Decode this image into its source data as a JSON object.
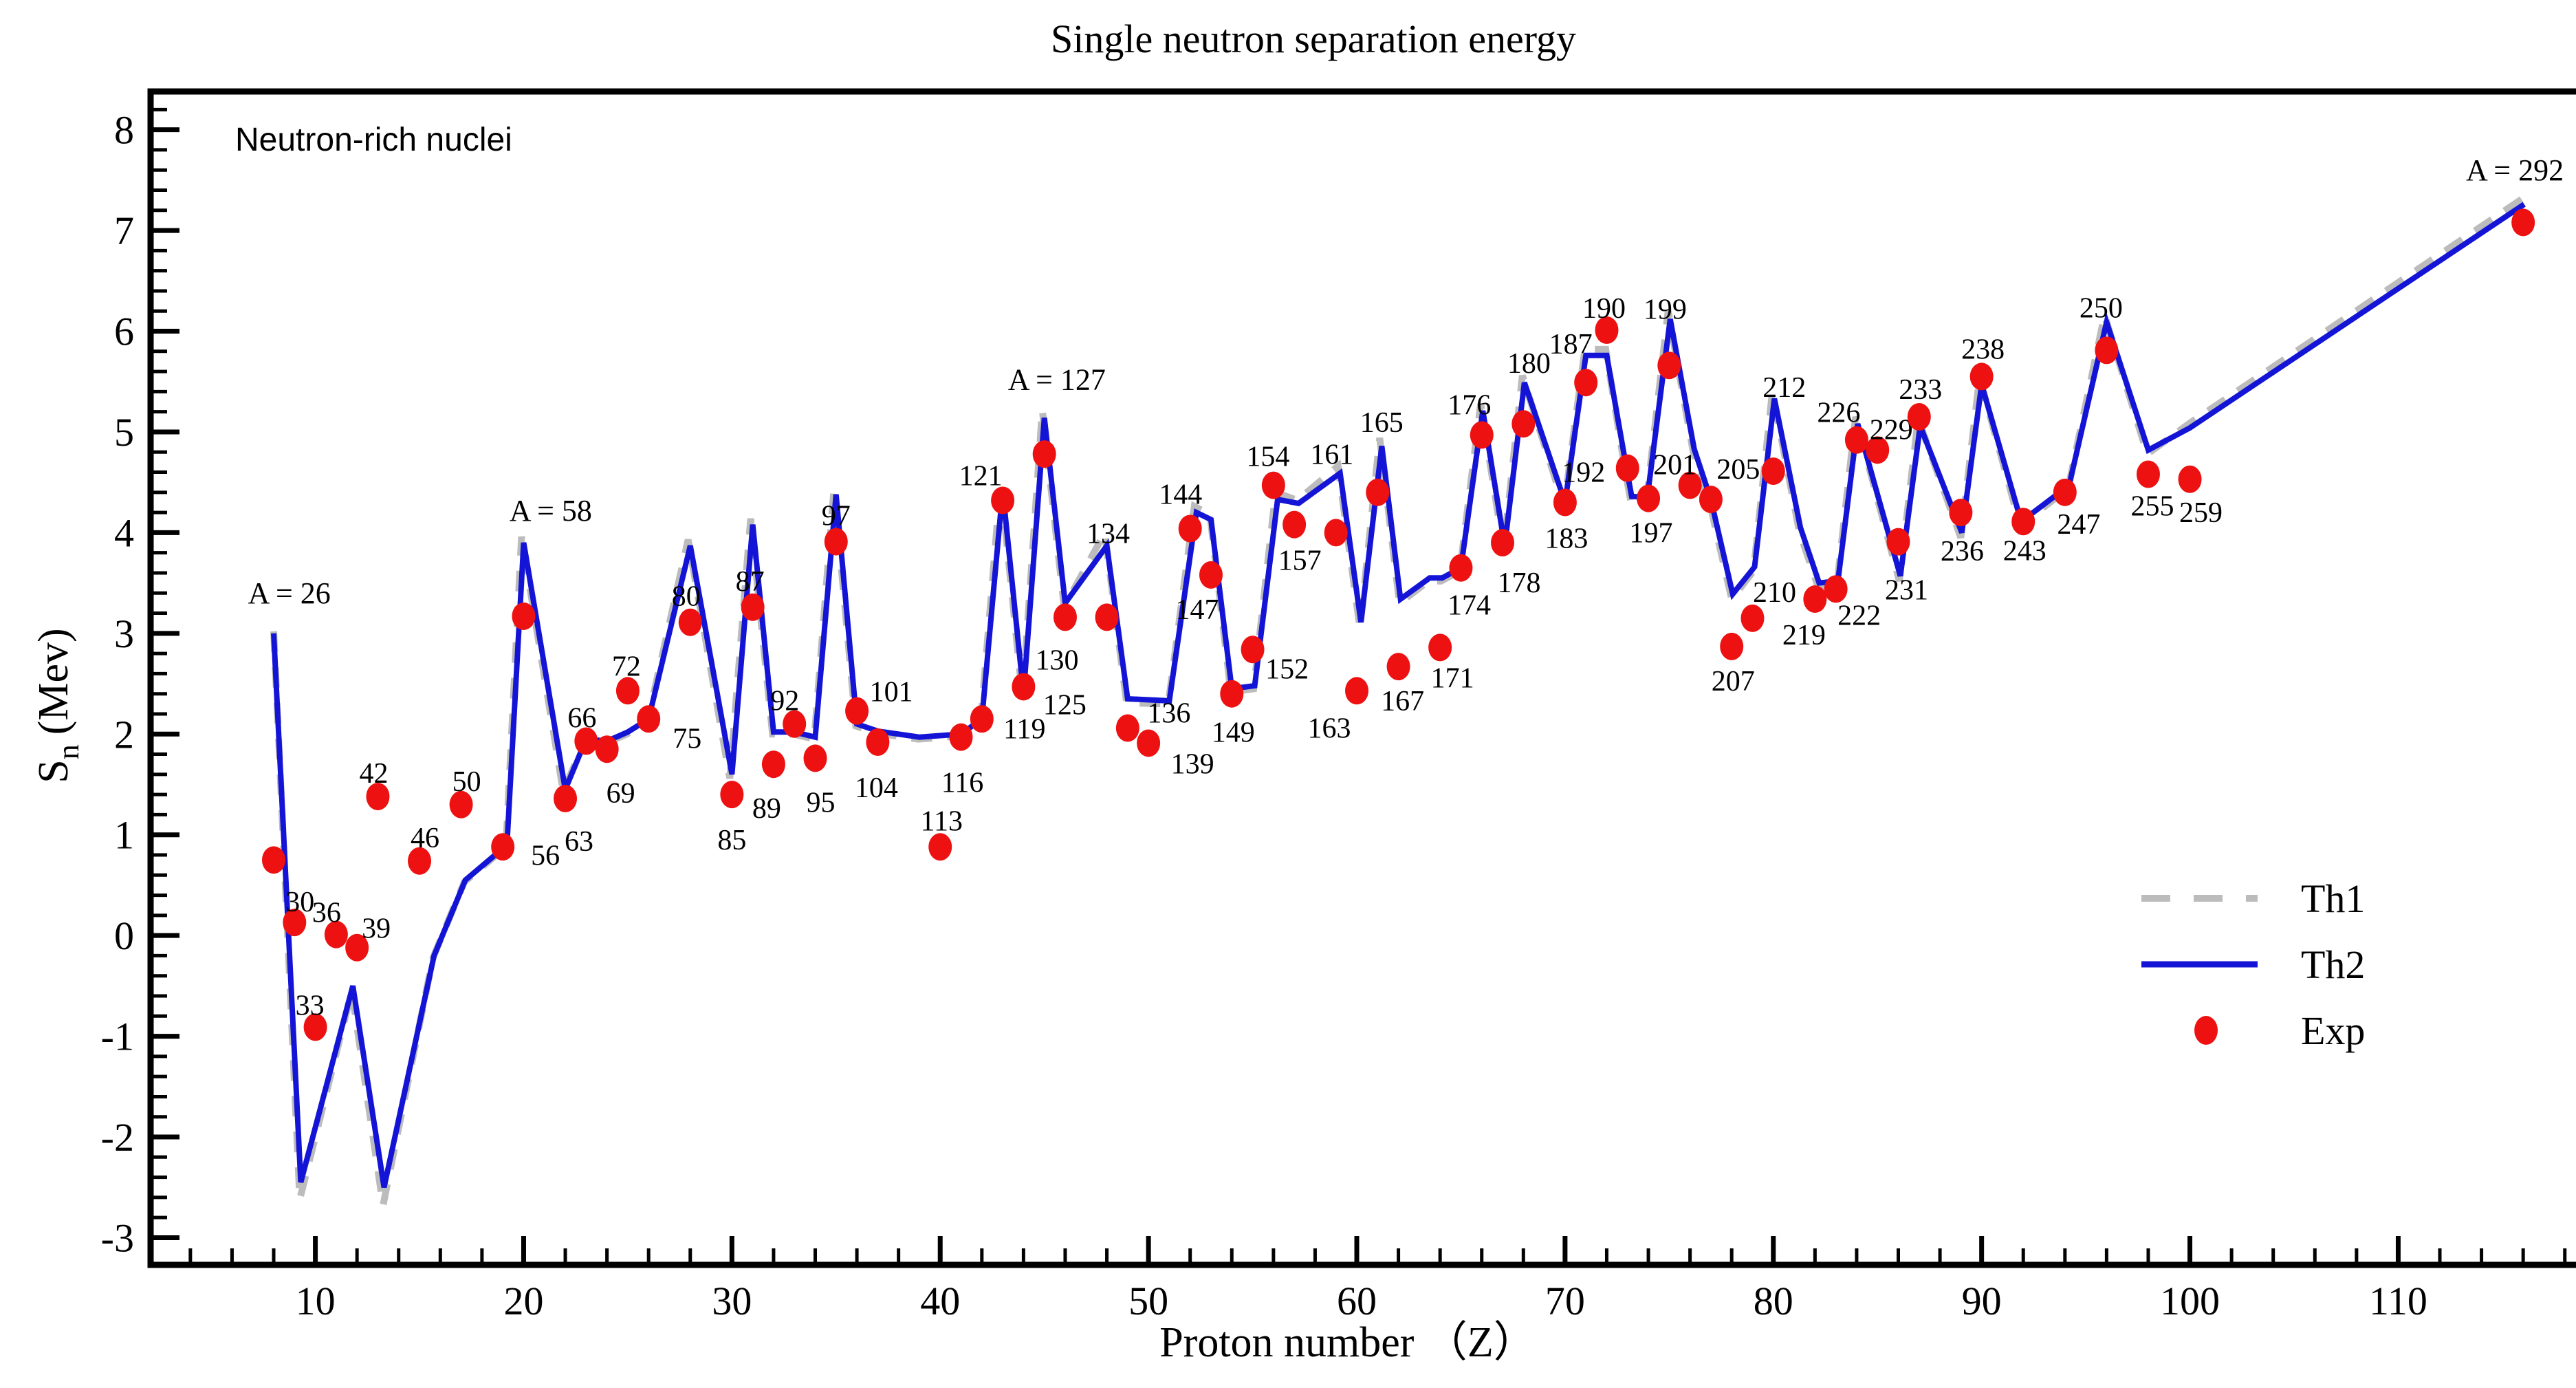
{
  "chart_data": {
    "type": "line",
    "title": "Single neutron separation energy",
    "xlabel": "Proton number （Z）",
    "ylabel": {
      "symbol": "S",
      "subscript": "n",
      "unit": "(Mev)"
    },
    "annotation": "Neutron-rich nuclei",
    "legend": {
      "position": "inside-right-middle",
      "entries": [
        {
          "label": "Th1",
          "style": "dashed-gray-line"
        },
        {
          "label": "Th2",
          "style": "solid-blue-line"
        },
        {
          "label": "Exp",
          "style": "red-dot"
        }
      ]
    },
    "axes": {
      "xlim": [
        2.09,
        118.9
      ],
      "ylim": [
        -3.27,
        8.38
      ],
      "x_major_ticks": [
        10,
        20,
        30,
        40,
        50,
        60,
        70,
        80,
        90,
        100,
        110
      ],
      "x_minor_step": 2,
      "y_major_ticks": [
        -3,
        -2,
        -1,
        0,
        1,
        2,
        3,
        4,
        5,
        6,
        7,
        8
      ],
      "y_minor_step": 0.2,
      "grid": false
    },
    "colors": {
      "th1": "#bcbcbc",
      "th2": "#1414d6",
      "exp": "#ee1111",
      "frame": "#000000"
    },
    "series": {
      "th1_name": "Th1",
      "th2_name": "Th2",
      "exp_name": "Exp",
      "th1": [
        [
          8,
          3.02
        ],
        [
          9.25,
          -2.62
        ],
        [
          11.75,
          -0.55
        ],
        [
          13.25,
          -2.68
        ],
        [
          15.65,
          -0.22
        ],
        [
          17.15,
          0.53
        ],
        [
          19.15,
          0.88
        ],
        [
          19.9,
          3.96
        ],
        [
          21.9,
          1.43
        ],
        [
          22.95,
          1.93
        ],
        [
          23.95,
          1.91
        ],
        [
          24.95,
          2.0
        ],
        [
          25.95,
          2.13
        ],
        [
          27.9,
          3.93
        ],
        [
          29.9,
          1.56
        ],
        [
          30.9,
          4.14
        ],
        [
          31.95,
          2.0
        ],
        [
          32.95,
          2.0
        ],
        [
          33.95,
          1.95
        ],
        [
          34.9,
          4.44
        ],
        [
          35.95,
          2.08
        ],
        [
          36.95,
          2.01
        ],
        [
          38.95,
          1.95
        ],
        [
          40.95,
          1.98
        ],
        [
          41.95,
          2.13
        ],
        [
          42.9,
          4.5
        ],
        [
          43.95,
          2.36
        ],
        [
          44.9,
          5.22
        ],
        [
          45.95,
          3.26
        ],
        [
          47.9,
          4.0
        ],
        [
          48.95,
          2.31
        ],
        [
          50.95,
          2.3
        ],
        [
          52.2,
          4.26
        ],
        [
          52.95,
          4.18
        ],
        [
          53.95,
          2.42
        ],
        [
          55.05,
          2.45
        ],
        [
          56.1,
          4.4
        ],
        [
          57.15,
          4.32
        ],
        [
          59.1,
          4.66
        ],
        [
          60.15,
          3.05
        ],
        [
          61.1,
          4.94
        ],
        [
          62.05,
          3.3
        ],
        [
          63.45,
          3.52
        ],
        [
          64.05,
          3.52
        ],
        [
          64.95,
          3.62
        ],
        [
          65.95,
          5.28
        ],
        [
          67.05,
          3.83
        ],
        [
          67.95,
          5.56
        ],
        [
          69.95,
          4.26
        ],
        [
          70.95,
          5.82
        ],
        [
          71.95,
          5.82
        ],
        [
          72.9,
          4.6
        ],
        [
          73.15,
          4.32
        ],
        [
          73.9,
          4.31
        ],
        [
          74.95,
          6.2
        ],
        [
          76.15,
          4.8
        ],
        [
          76.95,
          4.29
        ],
        [
          78,
          3.34
        ],
        [
          79.05,
          3.62
        ],
        [
          79.95,
          5.4
        ],
        [
          81.25,
          4.01
        ],
        [
          82.15,
          3.46
        ],
        [
          83.05,
          3.48
        ],
        [
          83.95,
          5.15
        ],
        [
          86.05,
          3.52
        ],
        [
          86.95,
          5.13
        ],
        [
          89,
          3.95
        ],
        [
          89.9,
          5.54
        ],
        [
          91.85,
          4.07
        ],
        [
          94.15,
          4.44
        ],
        [
          95.9,
          6.16
        ],
        [
          97.95,
          4.78
        ],
        [
          99.95,
          5.08
        ],
        [
          116,
          7.32
        ]
      ],
      "th2": [
        [
          8,
          3.0
        ],
        [
          9.3,
          -2.45
        ],
        [
          11.8,
          -0.5
        ],
        [
          13.3,
          -2.5
        ],
        [
          15.7,
          -0.2
        ],
        [
          17.2,
          0.55
        ],
        [
          19.2,
          0.9
        ],
        [
          20,
          3.9
        ],
        [
          22,
          1.45
        ],
        [
          23,
          1.95
        ],
        [
          24,
          1.93
        ],
        [
          25,
          2.02
        ],
        [
          26,
          2.15
        ],
        [
          28,
          3.87
        ],
        [
          30,
          1.6
        ],
        [
          31,
          4.08
        ],
        [
          32,
          2.02
        ],
        [
          33,
          2.02
        ],
        [
          34,
          1.97
        ],
        [
          35,
          4.38
        ],
        [
          36,
          2.1
        ],
        [
          37,
          2.03
        ],
        [
          39,
          1.97
        ],
        [
          41,
          2.0
        ],
        [
          42,
          2.15
        ],
        [
          43,
          4.42
        ],
        [
          44,
          2.4
        ],
        [
          45,
          5.14
        ],
        [
          46,
          3.3
        ],
        [
          48,
          3.87
        ],
        [
          49,
          2.35
        ],
        [
          51,
          2.33
        ],
        [
          52.3,
          4.2
        ],
        [
          53,
          4.13
        ],
        [
          54,
          2.45
        ],
        [
          55.1,
          2.48
        ],
        [
          56.2,
          4.33
        ],
        [
          57.2,
          4.29
        ],
        [
          59.2,
          4.59
        ],
        [
          60.2,
          3.11
        ],
        [
          61.2,
          4.86
        ],
        [
          62.1,
          3.34
        ],
        [
          63.5,
          3.55
        ],
        [
          64.1,
          3.55
        ],
        [
          65,
          3.65
        ],
        [
          66.05,
          5.21
        ],
        [
          67.1,
          3.87
        ],
        [
          68.05,
          5.49
        ],
        [
          70,
          4.3
        ],
        [
          71,
          5.76
        ],
        [
          72,
          5.76
        ],
        [
          72.95,
          4.64
        ],
        [
          73.2,
          4.36
        ],
        [
          73.95,
          4.35
        ],
        [
          75.05,
          6.12
        ],
        [
          76.2,
          4.83
        ],
        [
          77,
          4.33
        ],
        [
          78.05,
          3.39
        ],
        [
          79.1,
          3.66
        ],
        [
          80.05,
          5.33
        ],
        [
          81.3,
          4.05
        ],
        [
          82.2,
          3.5
        ],
        [
          83.1,
          3.52
        ],
        [
          84.05,
          5.08
        ],
        [
          86.1,
          3.57
        ],
        [
          87.05,
          5.06
        ],
        [
          89.05,
          4.0
        ],
        [
          90,
          5.47
        ],
        [
          91.9,
          4.11
        ],
        [
          94.2,
          4.47
        ],
        [
          96,
          6.09
        ],
        [
          98,
          4.82
        ],
        [
          100,
          5.04
        ],
        [
          116.05,
          7.26
        ]
      ]
    },
    "exp_points": [
      [
        26,
        8,
        0.75
      ],
      [
        30,
        9,
        0.13,
        8,
        -30
      ],
      [
        33,
        10,
        -0.91,
        -8,
        -32
      ],
      [
        36,
        11,
        0.01,
        -14,
        -32
      ],
      [
        39,
        12,
        -0.12,
        28,
        -28
      ],
      [
        42,
        13,
        1.38,
        -6,
        -34
      ],
      [
        46,
        15,
        0.74,
        8,
        -34
      ],
      [
        50,
        17,
        1.3,
        8,
        -34
      ],
      [
        56,
        19,
        0.88,
        62,
        12
      ],
      [
        58,
        20,
        3.17
      ],
      [
        63,
        22,
        1.36,
        20,
        62
      ],
      [
        66,
        23,
        1.93,
        -6,
        -34
      ],
      [
        69,
        24,
        1.85,
        20,
        64
      ],
      [
        72,
        25,
        2.43,
        -2,
        -36
      ],
      [
        75,
        26,
        2.15,
        56,
        28
      ],
      [
        80,
        28,
        3.11,
        -6,
        -38
      ],
      [
        85,
        30,
        1.4,
        0,
        66
      ],
      [
        87,
        31,
        3.26,
        -4,
        -38
      ],
      [
        89,
        32,
        1.7,
        -10,
        64
      ],
      [
        92,
        33,
        2.1,
        -14,
        -34
      ],
      [
        95,
        34,
        1.76,
        8,
        64
      ],
      [
        97,
        35,
        3.91,
        0,
        -38
      ],
      [
        101,
        36,
        2.23,
        50,
        -28
      ],
      [
        104,
        37,
        1.92,
        -2,
        66
      ],
      [
        113,
        40,
        0.88,
        2,
        -38
      ],
      [
        116,
        41,
        1.97,
        2,
        66
      ],
      [
        119,
        42,
        2.15,
        62,
        14
      ],
      [
        121,
        43,
        4.32,
        -32,
        -36
      ],
      [
        125,
        44,
        2.47,
        60,
        26
      ],
      [
        127,
        45,
        4.78
      ],
      [
        130,
        46,
        3.16,
        -12,
        62
      ],
      [
        134,
        48,
        3.16,
        2,
        -122
      ],
      [
        136,
        49,
        2.06,
        60,
        -22
      ],
      [
        139,
        50,
        1.91,
        64,
        30
      ],
      [
        144,
        52,
        4.04,
        -14,
        -50
      ],
      [
        147,
        53,
        3.58,
        -20,
        50
      ],
      [
        149,
        54,
        2.4,
        2,
        56
      ],
      [
        152,
        55,
        2.84,
        50,
        28
      ],
      [
        154,
        56,
        4.47,
        -8,
        -42
      ],
      [
        157,
        57,
        4.08,
        8,
        52
      ],
      [
        161,
        59,
        4.0,
        -6,
        -114
      ],
      [
        163,
        60,
        2.43,
        -40,
        54
      ],
      [
        165,
        61,
        4.4,
        6,
        -102
      ],
      [
        167,
        62,
        2.67,
        6,
        50
      ],
      [
        171,
        64,
        2.86,
        18,
        44
      ],
      [
        174,
        65,
        3.65,
        12,
        54
      ],
      [
        176,
        66,
        4.97,
        -18,
        -44
      ],
      [
        178,
        67,
        3.9,
        24,
        58
      ],
      [
        180,
        68,
        5.08,
        8,
        -88
      ],
      [
        183,
        70,
        4.3,
        2,
        52
      ],
      [
        187,
        71,
        5.49,
        -22,
        -56
      ],
      [
        190,
        72,
        6.01,
        -4,
        -32
      ],
      [
        192,
        73,
        4.64,
        -64,
        6
      ],
      [
        197,
        74,
        4.34,
        4,
        50
      ],
      [
        199,
        75,
        5.66,
        -6,
        -82
      ],
      [
        201,
        76,
        4.47,
        -22,
        -30
      ],
      [
        205,
        77,
        4.33,
        40,
        -44
      ],
      [
        207,
        78,
        2.87,
        2,
        50
      ],
      [
        210,
        79,
        3.15,
        32,
        -38
      ],
      [
        212,
        80,
        4.61,
        16,
        -122
      ],
      [
        219,
        82,
        3.34,
        -16,
        52
      ],
      [
        222,
        83,
        3.44,
        34,
        38
      ],
      [
        226,
        84,
        4.92,
        -26,
        -40
      ],
      [
        229,
        85,
        4.82,
        20,
        -30
      ],
      [
        231,
        86,
        3.91,
        12,
        70
      ],
      [
        233,
        87,
        5.15,
        2,
        -40
      ],
      [
        236,
        89,
        4.2,
        2,
        56
      ],
      [
        238,
        90,
        5.55,
        2,
        -40
      ],
      [
        243,
        92,
        4.11,
        2,
        42
      ],
      [
        247,
        94,
        4.4,
        20,
        46
      ],
      [
        250,
        96,
        5.81,
        -8,
        -62
      ],
      [
        255,
        98,
        4.58,
        6,
        46
      ],
      [
        259,
        100,
        4.53,
        16,
        48
      ],
      [
        292,
        116,
        7.08
      ]
    ],
    "peak_annotations": [
      {
        "text": "A = 26",
        "z": 8.75,
        "v": 3.3
      },
      {
        "text": "A = 58",
        "z": 21.3,
        "v": 4.12
      },
      {
        "text": "A = 127",
        "z": 45.6,
        "v": 5.42
      },
      {
        "text": "A = 292",
        "z": 115.6,
        "v": 7.5
      }
    ]
  }
}
